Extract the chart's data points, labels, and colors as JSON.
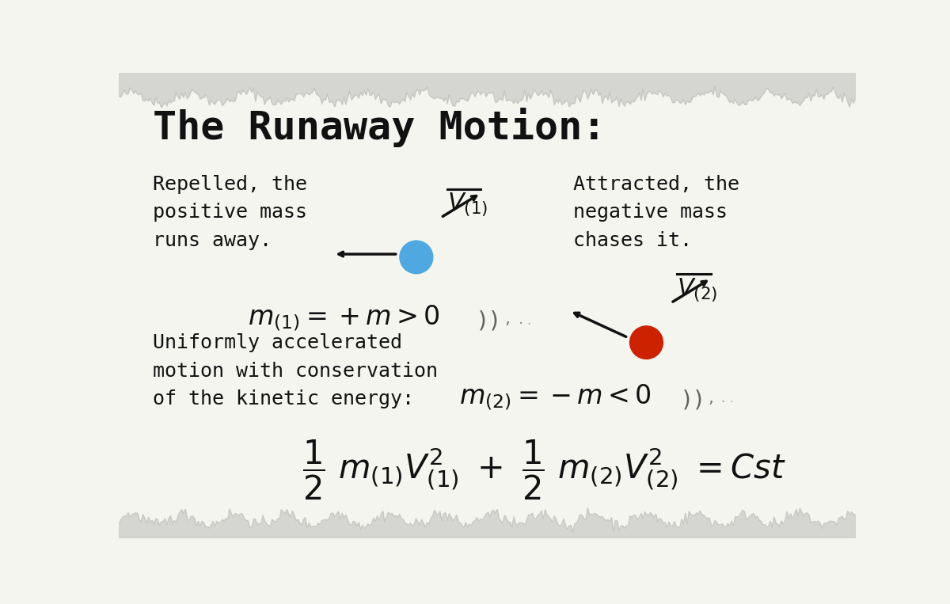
{
  "title": "The Runaway Motion:",
  "bg_color": "#f5f5f0",
  "text_color": "#111111",
  "blue_particle_color": "#4fa8e0",
  "red_particle_color": "#cc2200",
  "left_label": "Repelled, the\npositive mass\nruns away.",
  "right_label": "Attracted, the\nnegative mass\nchases it.",
  "bottom_left_label": "Uniformly accelerated\nmotion with conservation\nof the kinetic energy:",
  "torn_top_color": "#d0d0cc",
  "torn_bot_color": "#d0d0cc"
}
